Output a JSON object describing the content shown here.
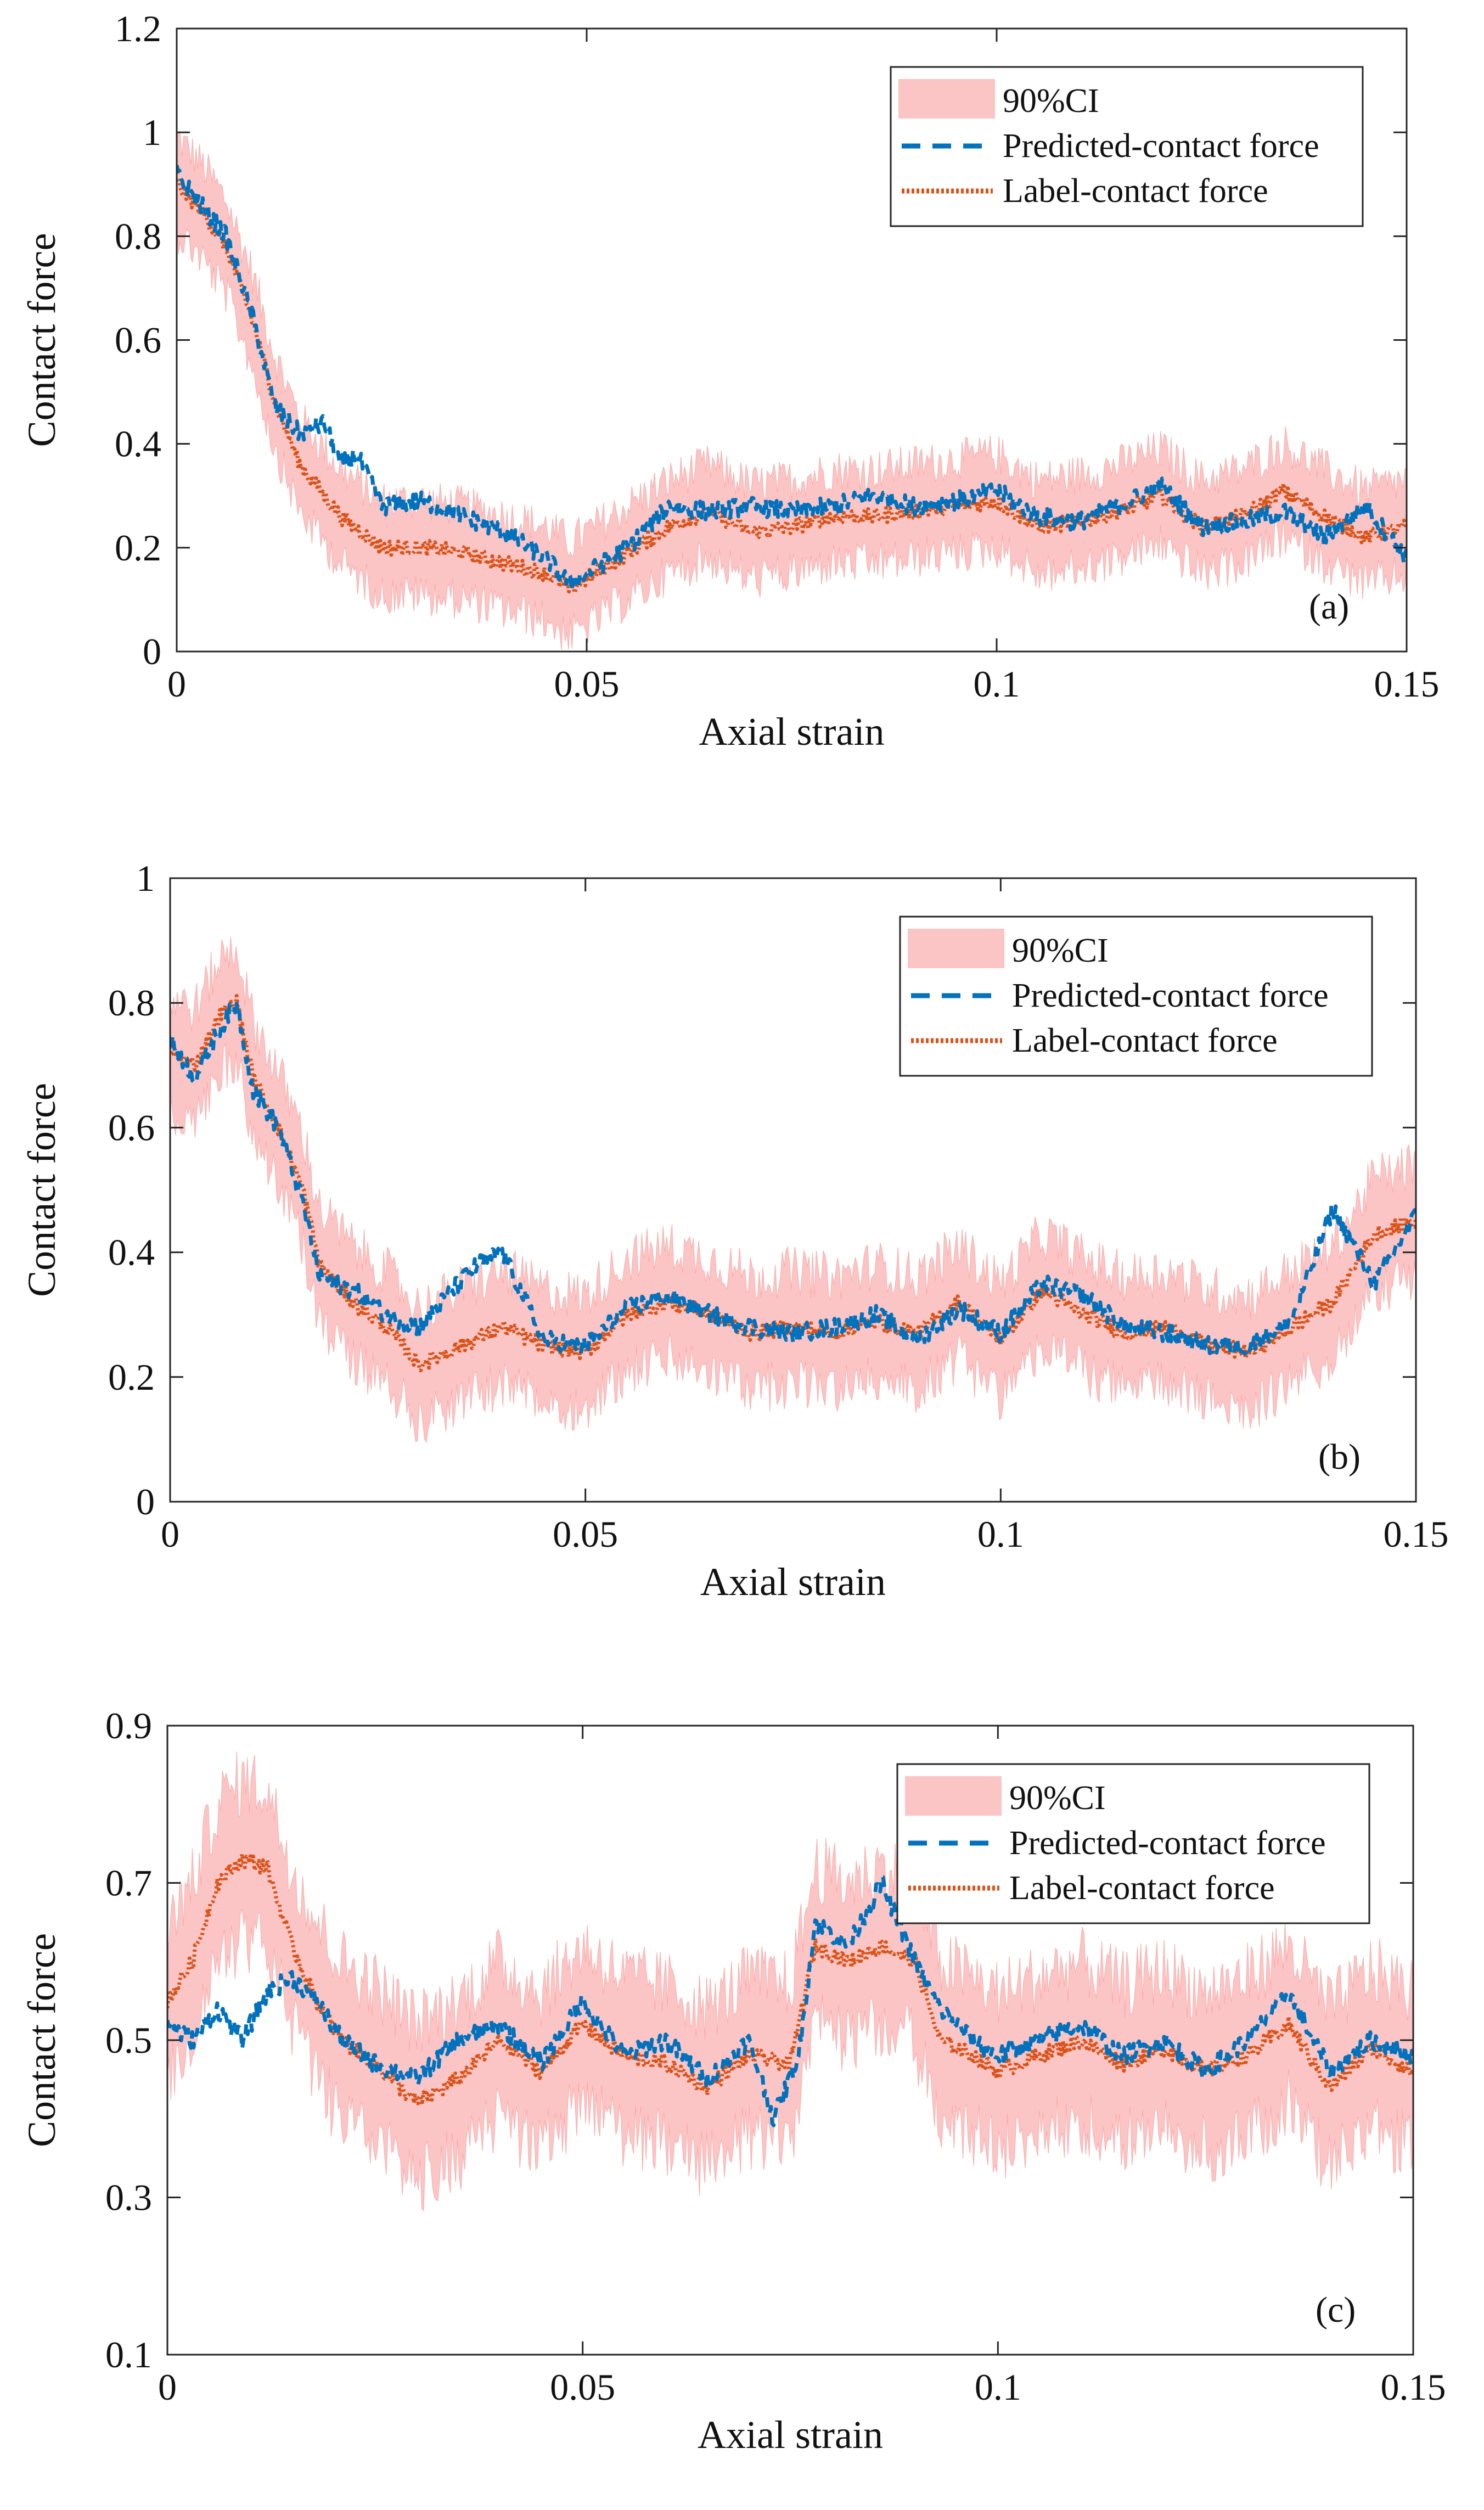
{
  "chart_data": [
    {
      "type": "line",
      "panel_label": "(a)",
      "xlabel": "Axial strain",
      "ylabel": "Contact force",
      "xlim": [
        0,
        0.15
      ],
      "ylim": [
        0,
        1.2
      ],
      "xticks": [
        0,
        0.05,
        0.1,
        0.15
      ],
      "xtick_labels": [
        "0",
        "0.05",
        "0.1",
        "0.15"
      ],
      "yticks": [
        0,
        0.2,
        0.4,
        0.6,
        0.8,
        1.0,
        1.2
      ],
      "ytick_labels": [
        "0",
        "0.2",
        "0.4",
        "0.6",
        "0.8",
        "1",
        "1.2"
      ],
      "legend": {
        "position": "top-right",
        "entries": [
          "90%CI",
          "Predicted-contact force",
          "Label-contact force"
        ]
      },
      "ci_halfwidth": 0.09,
      "series": [
        {
          "name": "Label-contact force",
          "color": "#D95319",
          "style": "dotted",
          "x": [
            0,
            0.003,
            0.006,
            0.009,
            0.012,
            0.015,
            0.02,
            0.025,
            0.03,
            0.035,
            0.04,
            0.045,
            0.048,
            0.05,
            0.055,
            0.06,
            0.065,
            0.07,
            0.075,
            0.08,
            0.085,
            0.09,
            0.095,
            0.1,
            0.105,
            0.11,
            0.115,
            0.12,
            0.125,
            0.13,
            0.135,
            0.14,
            0.145,
            0.15
          ],
          "y": [
            0.9,
            0.85,
            0.78,
            0.65,
            0.48,
            0.36,
            0.26,
            0.2,
            0.2,
            0.19,
            0.17,
            0.15,
            0.12,
            0.14,
            0.19,
            0.24,
            0.27,
            0.23,
            0.24,
            0.26,
            0.26,
            0.27,
            0.28,
            0.29,
            0.24,
            0.25,
            0.27,
            0.3,
            0.24,
            0.26,
            0.31,
            0.26,
            0.22,
            0.24
          ]
        },
        {
          "name": "Predicted-contact force",
          "color": "#0072BD",
          "style": "dashed",
          "x": [
            0,
            0.003,
            0.006,
            0.009,
            0.012,
            0.015,
            0.018,
            0.02,
            0.022,
            0.025,
            0.03,
            0.035,
            0.04,
            0.045,
            0.048,
            0.05,
            0.055,
            0.06,
            0.065,
            0.07,
            0.075,
            0.08,
            0.085,
            0.09,
            0.095,
            0.1,
            0.105,
            0.11,
            0.115,
            0.12,
            0.125,
            0.13,
            0.135,
            0.14,
            0.145,
            0.15
          ],
          "y": [
            0.92,
            0.86,
            0.8,
            0.66,
            0.47,
            0.42,
            0.44,
            0.36,
            0.38,
            0.28,
            0.29,
            0.26,
            0.23,
            0.18,
            0.13,
            0.15,
            0.2,
            0.28,
            0.27,
            0.28,
            0.27,
            0.28,
            0.3,
            0.28,
            0.29,
            0.31,
            0.26,
            0.25,
            0.28,
            0.32,
            0.24,
            0.25,
            0.27,
            0.22,
            0.28,
            0.18
          ]
        }
      ]
    },
    {
      "type": "line",
      "panel_label": "(b)",
      "xlabel": "Axial strain",
      "ylabel": "Contact force",
      "xlim": [
        0,
        0.15
      ],
      "ylim": [
        0,
        1.0
      ],
      "xticks": [
        0,
        0.05,
        0.1,
        0.15
      ],
      "xtick_labels": [
        "0",
        "0.05",
        "0.1",
        "0.15"
      ],
      "yticks": [
        0,
        0.2,
        0.4,
        0.6,
        0.8,
        1.0
      ],
      "ytick_labels": [
        "0",
        "0.2",
        "0.4",
        "0.6",
        "0.8",
        "1"
      ],
      "legend": {
        "position": "top-right",
        "entries": [
          "90%CI",
          "Predicted-contact force",
          "Label-contact force"
        ]
      },
      "ci_halfwidth": 0.09,
      "series": [
        {
          "name": "Label-contact force",
          "color": "#D95319",
          "style": "dotted",
          "x": [
            0,
            0.003,
            0.006,
            0.008,
            0.01,
            0.013,
            0.016,
            0.018,
            0.022,
            0.026,
            0.03,
            0.035,
            0.04,
            0.045,
            0.05,
            0.055,
            0.06,
            0.065,
            0.07,
            0.075,
            0.08,
            0.085,
            0.09,
            0.095,
            0.1,
            0.105,
            0.11,
            0.115,
            0.12,
            0.125,
            0.13,
            0.135,
            0.14,
            0.145,
            0.15
          ],
          "y": [
            0.72,
            0.7,
            0.78,
            0.8,
            0.68,
            0.6,
            0.5,
            0.38,
            0.32,
            0.28,
            0.22,
            0.25,
            0.28,
            0.25,
            0.24,
            0.3,
            0.32,
            0.3,
            0.27,
            0.28,
            0.27,
            0.29,
            0.27,
            0.32,
            0.26,
            0.34,
            0.3,
            0.27,
            0.28,
            0.25,
            0.24,
            0.28,
            0.32,
            0.43,
            0.45
          ]
        },
        {
          "name": "Predicted-contact force",
          "color": "#0072BD",
          "style": "dashed",
          "x": [
            0,
            0.003,
            0.006,
            0.008,
            0.01,
            0.013,
            0.016,
            0.018,
            0.022,
            0.026,
            0.03,
            0.034,
            0.037,
            0.04,
            0.045,
            0.05,
            0.055,
            0.06,
            0.065,
            0.07,
            0.075,
            0.08,
            0.085,
            0.09,
            0.095,
            0.1,
            0.105,
            0.11,
            0.115,
            0.12,
            0.125,
            0.13,
            0.135,
            0.14,
            0.145,
            0.15
          ],
          "y": [
            0.74,
            0.68,
            0.76,
            0.8,
            0.66,
            0.6,
            0.48,
            0.36,
            0.34,
            0.3,
            0.28,
            0.34,
            0.38,
            0.4,
            0.26,
            0.25,
            0.31,
            0.33,
            0.3,
            0.28,
            0.27,
            0.28,
            0.3,
            0.26,
            0.31,
            0.27,
            0.35,
            0.33,
            0.28,
            0.27,
            0.25,
            0.25,
            0.29,
            0.47,
            0.35,
            0.46
          ]
        }
      ]
    },
    {
      "type": "line",
      "panel_label": "(c)",
      "xlabel": "Axial strain",
      "ylabel": "Contact force",
      "xlim": [
        0,
        0.15
      ],
      "ylim": [
        0.1,
        0.9
      ],
      "xticks": [
        0,
        0.05,
        0.1,
        0.15
      ],
      "xtick_labels": [
        "0",
        "0.05",
        "0.1",
        "0.15"
      ],
      "yticks": [
        0.1,
        0.3,
        0.5,
        0.7,
        0.9
      ],
      "ytick_labels": [
        "0.1",
        "0.3",
        "0.5",
        "0.7",
        "0.9"
      ],
      "legend": {
        "position": "top-right",
        "entries": [
          "90%CI",
          "Predicted-contact force",
          "Label-contact force"
        ]
      },
      "ci_halfwidth": 0.1,
      "series": [
        {
          "name": "Label-contact force",
          "color": "#D95319",
          "style": "dotted",
          "x": [
            0,
            0.003,
            0.006,
            0.009,
            0.012,
            0.015,
            0.018,
            0.021,
            0.025,
            0.03,
            0.035,
            0.04,
            0.045,
            0.05,
            0.055,
            0.06,
            0.065,
            0.07,
            0.075,
            0.078,
            0.082,
            0.086,
            0.09,
            0.093,
            0.097,
            0.1,
            0.105,
            0.11,
            0.115,
            0.12,
            0.125,
            0.13,
            0.135,
            0.14,
            0.145,
            0.15
          ],
          "y": [
            0.55,
            0.6,
            0.7,
            0.73,
            0.72,
            0.62,
            0.55,
            0.5,
            0.47,
            0.42,
            0.45,
            0.5,
            0.46,
            0.52,
            0.48,
            0.47,
            0.44,
            0.48,
            0.47,
            0.62,
            0.6,
            0.62,
            0.6,
            0.5,
            0.48,
            0.46,
            0.48,
            0.5,
            0.47,
            0.49,
            0.46,
            0.48,
            0.52,
            0.44,
            0.49,
            0.46
          ]
        },
        {
          "name": "Predicted-contact force",
          "color": "#0072BD",
          "style": "dashed",
          "x": [
            0,
            0.003,
            0.006,
            0.009,
            0.012,
            0.015,
            0.018,
            0.021,
            0.025,
            0.03,
            0.035,
            0.04,
            0.045,
            0.05,
            0.055,
            0.06,
            0.065,
            0.07,
            0.073,
            0.076,
            0.078,
            0.082,
            0.086,
            0.09,
            0.093,
            0.097,
            0.1,
            0.105,
            0.11,
            0.115,
            0.12,
            0.125,
            0.13,
            0.135,
            0.14,
            0.145,
            0.15
          ],
          "y": [
            0.52,
            0.5,
            0.54,
            0.5,
            0.56,
            0.58,
            0.55,
            0.5,
            0.47,
            0.45,
            0.5,
            0.52,
            0.47,
            0.55,
            0.48,
            0.5,
            0.45,
            0.5,
            0.4,
            0.48,
            0.65,
            0.62,
            0.7,
            0.6,
            0.54,
            0.5,
            0.48,
            0.5,
            0.52,
            0.48,
            0.5,
            0.46,
            0.5,
            0.56,
            0.46,
            0.5,
            0.48
          ]
        }
      ]
    }
  ]
}
